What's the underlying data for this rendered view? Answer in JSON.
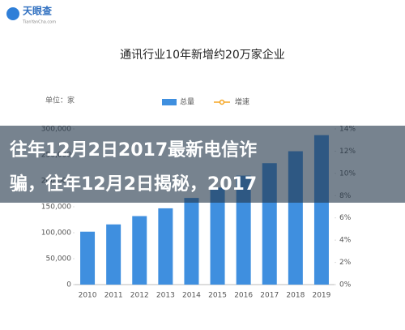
{
  "logo": {
    "name": "天眼查",
    "domain": "TianYanCha.com"
  },
  "overlay": {
    "lines": [
      "往年12月2日2017最新电信诈",
      "骗，往年12月2日揭秘，2017"
    ]
  },
  "chart_data": {
    "type": "bar",
    "title": "通讯行业10年新增约20万家企业",
    "unit_label": "单位：家",
    "categories": [
      "2010",
      "2011",
      "2012",
      "2013",
      "2014",
      "2015",
      "2016",
      "2017",
      "2018",
      "2019"
    ],
    "series": [
      {
        "name": "总量",
        "color": "#3f8fdf",
        "values": [
          102000,
          116000,
          132000,
          147000,
          167000,
          187000,
          210000,
          234000,
          257000,
          288000
        ]
      },
      {
        "name": "增速",
        "color": "#f5a623",
        "type": "line",
        "axis": "y2",
        "values": [
          null,
          null,
          null,
          null,
          null,
          null,
          null,
          null,
          null,
          null
        ]
      }
    ],
    "ylim": [
      0,
      300000
    ],
    "yticks": [
      0,
      {
        "value": 50000,
        "label": "50,000"
      },
      {
        "value": 100000,
        "label": "100,000"
      },
      {
        "value": 150000,
        "label": "150,000"
      },
      {
        "value": 200000,
        "label": "200,000"
      },
      {
        "value": 250000,
        "label": "250,000"
      },
      {
        "value": 300000,
        "label": "300,000"
      }
    ],
    "y2lim": [
      0,
      14
    ],
    "y2ticks": [
      {
        "value": 0,
        "label": "0%"
      },
      {
        "value": 2,
        "label": "2%"
      },
      {
        "value": 4,
        "label": "4%"
      },
      {
        "value": 6,
        "label": "6%"
      },
      {
        "value": 8,
        "label": "8%"
      },
      {
        "value": 10,
        "label": "10%"
      },
      {
        "value": 12,
        "label": "12%"
      },
      {
        "value": 14,
        "label": "14%"
      }
    ]
  }
}
